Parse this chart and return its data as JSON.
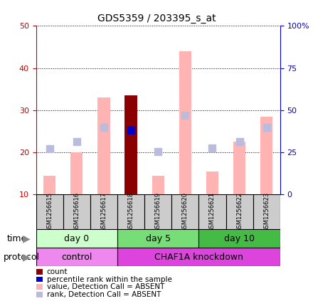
{
  "title": "GDS5359 / 203395_s_at",
  "samples": [
    "GSM1256615",
    "GSM1256616",
    "GSM1256617",
    "GSM1256618",
    "GSM1256619",
    "GSM1256620",
    "GSM1256621",
    "GSM1256622",
    "GSM1256623"
  ],
  "pink_bars": [
    14.5,
    20.0,
    33.0,
    33.5,
    14.5,
    44.0,
    15.5,
    22.5,
    28.5
  ],
  "blue_dots": [
    20.8,
    22.5,
    26.0,
    25.3,
    20.2,
    28.8,
    21.0,
    22.5,
    26.0
  ],
  "dark_red_bar_index": 3,
  "dark_blue_dot_index": 3,
  "ylim_left": [
    10,
    50
  ],
  "ylim_right": [
    0,
    100
  ],
  "yticks_left": [
    10,
    20,
    30,
    40,
    50
  ],
  "yticks_right": [
    0,
    25,
    50,
    75,
    100
  ],
  "ytick_labels_right": [
    "0",
    "25",
    "50",
    "75",
    "100%"
  ],
  "time_groups": [
    {
      "label": "day 0",
      "start": 0,
      "end": 3,
      "color": "#ccffcc"
    },
    {
      "label": "day 5",
      "start": 3,
      "end": 6,
      "color": "#77dd77"
    },
    {
      "label": "day 10",
      "start": 6,
      "end": 9,
      "color": "#44bb44"
    }
  ],
  "protocol_groups": [
    {
      "label": "control",
      "start": 0,
      "end": 3,
      "color": "#ee88ee"
    },
    {
      "label": "CHAF1A knockdown",
      "start": 3,
      "end": 9,
      "color": "#dd44dd"
    }
  ],
  "legend": [
    {
      "color": "#8b0000",
      "label": "count"
    },
    {
      "color": "#0000cc",
      "label": "percentile rank within the sample"
    },
    {
      "color": "#ffb3b3",
      "label": "value, Detection Call = ABSENT"
    },
    {
      "color": "#bbbbdd",
      "label": "rank, Detection Call = ABSENT"
    }
  ],
  "bar_width": 0.45,
  "dot_size": 55,
  "pink_color": "#ffb3b3",
  "blue_dot_color": "#bbbbdd",
  "dark_red_color": "#8b0000",
  "dark_blue_color": "#0000cc",
  "grid_color": "#000000",
  "bg_color": "#ffffff",
  "sample_box_color": "#cccccc",
  "left_axis_color": "#cc0000",
  "right_axis_color": "#0000cc",
  "sample_label_fontsize": 6.0,
  "tick_fontsize": 8,
  "row_label_fontsize": 9,
  "time_row_fontsize": 9,
  "title_fontsize": 10
}
